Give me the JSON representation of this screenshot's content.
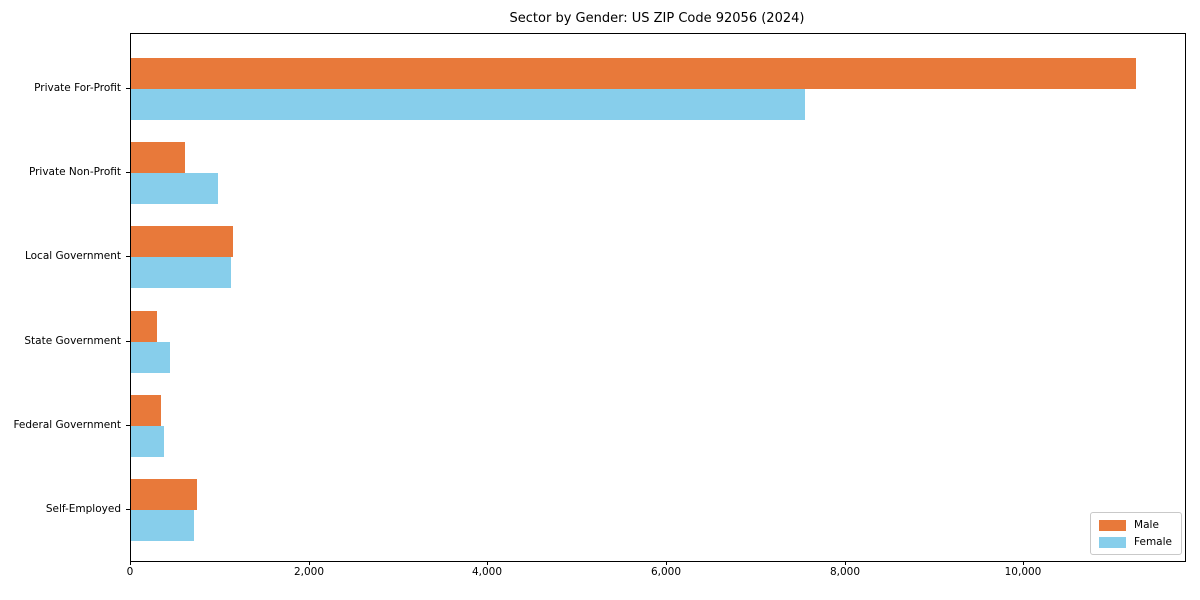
{
  "title": "Sector by Gender: US ZIP Code 92056 (2024)",
  "chart_data": {
    "type": "bar",
    "orientation": "horizontal",
    "title": "Sector by Gender: US ZIP Code 92056 (2024)",
    "xlabel": "",
    "ylabel": "",
    "categories": [
      "Private For-Profit",
      "Private Non-Profit",
      "Local Government",
      "State Government",
      "Federal Government",
      "Self-Employed"
    ],
    "series": [
      {
        "name": "Male",
        "color": "#E8793A",
        "values": [
          11250,
          600,
          1140,
          290,
          335,
          740
        ]
      },
      {
        "name": "Female",
        "color": "#87CEEB",
        "values": [
          7550,
          975,
          1115,
          440,
          370,
          705
        ]
      }
    ],
    "xlim": [
      0,
      11800
    ],
    "xticks": [
      0,
      2000,
      4000,
      6000,
      8000,
      10000
    ],
    "xtick_labels": [
      "0",
      "2,000",
      "4,000",
      "6,000",
      "8,000",
      "10,000"
    ],
    "grid": false,
    "legend_position": "lower right"
  },
  "colors": {
    "axis": "#000000",
    "text": "#000000",
    "legend_border": "#c9c9c9",
    "background": "#ffffff",
    "male": "#E8793A",
    "female": "#87CEEB"
  }
}
